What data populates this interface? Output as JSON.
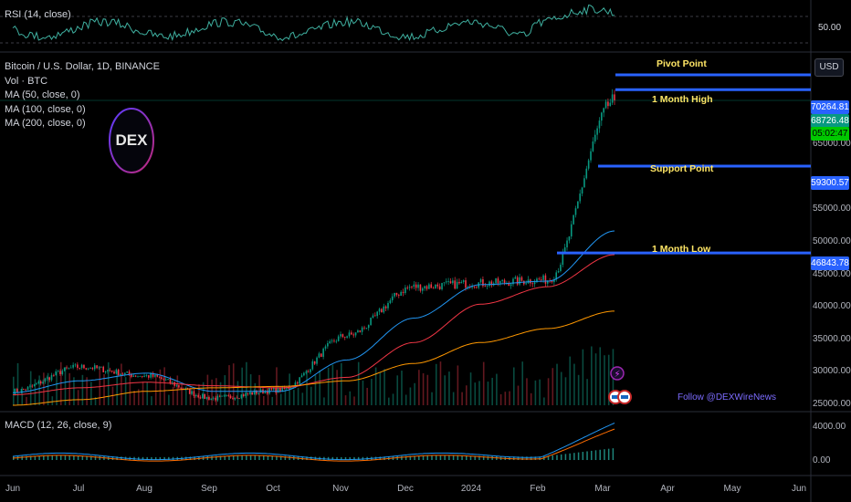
{
  "rsi_pane": {
    "title": "RSI (14, close)",
    "level_label": "50.00"
  },
  "legend": {
    "symbol": "Bitcoin / U.S. Dollar, 1D, BINANCE",
    "vol": "Vol · BTC",
    "ma50": "MA (50, close, 0)",
    "ma100": "MA (100, close, 0)",
    "ma200": "MA (200, close, 0)"
  },
  "logo": {
    "text": "DEX"
  },
  "currency_button": "USD",
  "price_axis": [
    "65000.00",
    "55000.00",
    "50000.00",
    "45000.00",
    "40000.00",
    "35000.00",
    "30000.00",
    "25000.00"
  ],
  "price_tags": {
    "month_high": {
      "label": "70264.81",
      "color": "#2962ff"
    },
    "current": {
      "label": "68726.48",
      "color": "#089981"
    },
    "countdown": {
      "label": "05:02:47",
      "color": "#00c800"
    },
    "support": {
      "label": "59300.57",
      "color": "#2962ff"
    },
    "month_low": {
      "label": "46843.78",
      "color": "#2962ff"
    }
  },
  "levels": {
    "pivot": "Pivot Point",
    "month_high": "1 Month High",
    "support": "Support Point",
    "month_low": "1 Month Low"
  },
  "macd_pane": {
    "title": "MACD (12, 26, close, 9)",
    "axis": [
      "4000.00",
      "0.00"
    ]
  },
  "date_axis": [
    "Jun",
    "Jul",
    "Aug",
    "Sep",
    "Oct",
    "Nov",
    "Dec",
    "2024",
    "Feb",
    "Mar",
    "Apr",
    "May",
    "Jun"
  ],
  "follow_text": "Follow @DEXWireNews",
  "colors": {
    "up": "#089981",
    "down": "#f23645",
    "ma50": "#2196f3",
    "ma100": "#f23645",
    "ma200": "#ff9800",
    "level": "#2962ff",
    "macd": "#2196f3",
    "signal": "#ff6d00"
  },
  "chart_data": {
    "type": "candlestick",
    "title": "Bitcoin / U.S. Dollar, 1D, BINANCE",
    "ylim": [
      25000,
      72000
    ],
    "x": [
      "Jun",
      "Jul",
      "Aug",
      "Sep",
      "Oct",
      "Nov",
      "Dec",
      "2024",
      "Feb",
      "Mar"
    ],
    "close": [
      27000,
      30500,
      29200,
      26000,
      27200,
      35000,
      42000,
      42500,
      43000,
      68726
    ],
    "ma50": [
      26800,
      28500,
      29600,
      27000,
      27000,
      31500,
      37500,
      42300,
      42800,
      50000
    ],
    "ma100": [
      26500,
      27500,
      28300,
      27800,
      27500,
      29000,
      34000,
      39500,
      42000,
      46600
    ],
    "ma200": [
      25000,
      25800,
      27000,
      27500,
      27700,
      28500,
      31000,
      34000,
      36000,
      38500
    ],
    "levels": {
      "pivot": 72800,
      "month_high": 70264.81,
      "support": 59300.57,
      "month_low": 46843.78
    },
    "current_price": 68726.48
  }
}
